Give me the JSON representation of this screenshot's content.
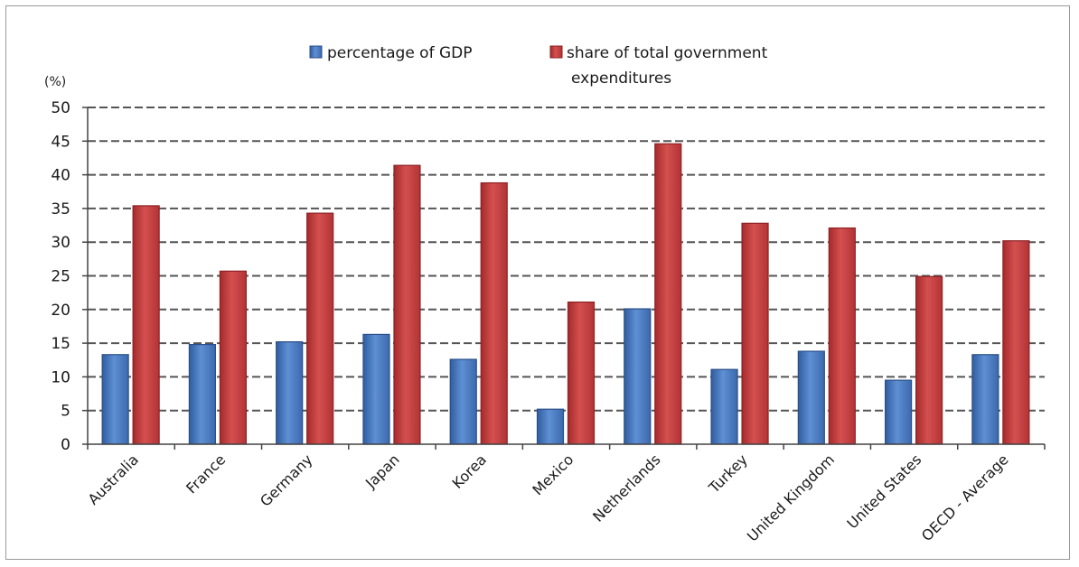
{
  "chart_data": {
    "type": "bar",
    "categories": [
      "Australia",
      "France",
      "Germany",
      "Japan",
      "Korea",
      "Mexico",
      "Netherlands",
      "Turkey",
      "United Kingdom",
      "United States",
      "OECD - Average"
    ],
    "series": [
      {
        "name": "percentage of GDP",
        "color": "#4a7bc4",
        "values": [
          13.3,
          14.8,
          15.2,
          16.3,
          12.6,
          5.2,
          20.1,
          11.1,
          13.8,
          9.5,
          13.3
        ]
      },
      {
        "name": "share of total government expenditures",
        "color": "#c0373a",
        "values": [
          35.4,
          25.7,
          34.3,
          41.4,
          38.8,
          21.1,
          44.6,
          32.8,
          32.1,
          24.9,
          30.2
        ]
      }
    ],
    "legend": {
      "labels": [
        "percentage of GDP",
        "share of total government",
        "expenditures"
      ],
      "placement": "top"
    },
    "ylabel": "(%)",
    "ylim": [
      0,
      50
    ],
    "yticks": [
      0,
      5,
      10,
      15,
      20,
      25,
      30,
      35,
      40,
      45,
      50
    ],
    "grid": true,
    "grid_style": "dashed"
  }
}
